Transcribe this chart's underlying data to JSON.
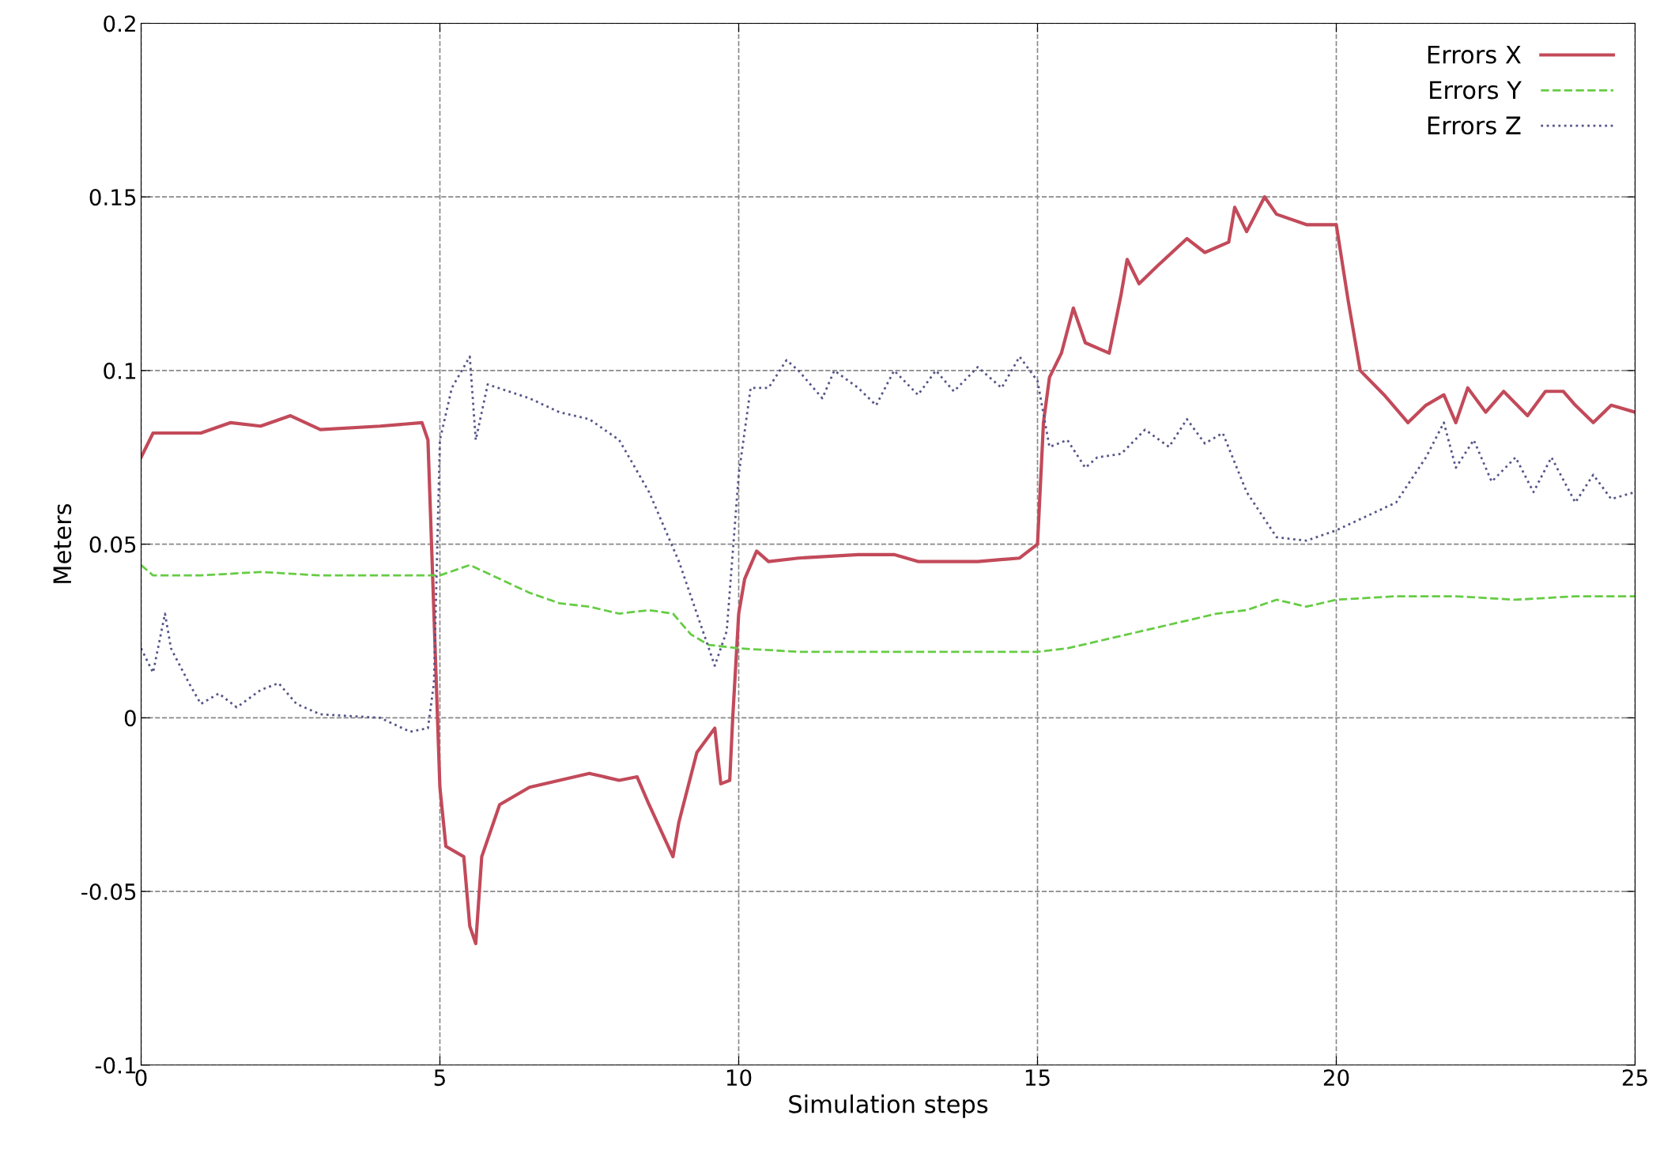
{
  "chart_data": {
    "type": "line",
    "xlabel": "Simulation steps",
    "ylabel": "Meters",
    "xlim": [
      0,
      25
    ],
    "xticks": [
      0,
      5,
      10,
      15,
      20,
      25
    ],
    "ylim": [
      -0.1,
      0.2
    ],
    "yticks": [
      -0.1,
      -0.05,
      0,
      0.05,
      0.1,
      0.15,
      0.2
    ],
    "grid": true,
    "legend": "top right",
    "series": [
      {
        "name": "Errors X",
        "color": "#c24a5a",
        "line_style": "solid",
        "x": [
          0,
          0.2,
          1,
          1.5,
          2,
          2.5,
          3,
          4,
          4.7,
          4.8,
          5.0,
          5.1,
          5.4,
          5.5,
          5.6,
          5.7,
          6.0,
          6.5,
          7,
          7.5,
          8,
          8.3,
          8.5,
          8.9,
          9.0,
          9.3,
          9.6,
          9.7,
          9.85,
          9.9,
          10.0,
          10.1,
          10.3,
          10.5,
          11,
          12,
          12.6,
          13,
          14,
          14.7,
          15,
          15.1,
          15.2,
          15.4,
          15.6,
          15.8,
          16.2,
          16.4,
          16.5,
          16.7,
          17,
          17.5,
          17.8,
          18.2,
          18.3,
          18.5,
          18.8,
          19,
          19.5,
          20,
          20.2,
          20.4,
          20.8,
          21.2,
          21.5,
          21.8,
          22,
          22.2,
          22.5,
          22.8,
          23.2,
          23.5,
          23.8,
          24,
          24.3,
          24.6,
          25
        ],
        "values": [
          0.075,
          0.082,
          0.082,
          0.085,
          0.084,
          0.087,
          0.083,
          0.084,
          0.085,
          0.08,
          -0.02,
          -0.037,
          -0.04,
          -0.06,
          -0.065,
          -0.04,
          -0.025,
          -0.02,
          -0.018,
          -0.016,
          -0.018,
          -0.017,
          -0.025,
          -0.04,
          -0.03,
          -0.01,
          -0.003,
          -0.019,
          -0.018,
          0.0,
          0.03,
          0.04,
          0.048,
          0.045,
          0.046,
          0.047,
          0.047,
          0.045,
          0.045,
          0.046,
          0.05,
          0.085,
          0.098,
          0.105,
          0.118,
          0.108,
          0.105,
          0.122,
          0.132,
          0.125,
          0.13,
          0.138,
          0.134,
          0.137,
          0.147,
          0.14,
          0.15,
          0.145,
          0.142,
          0.142,
          0.12,
          0.1,
          0.093,
          0.085,
          0.09,
          0.093,
          0.085,
          0.095,
          0.088,
          0.094,
          0.087,
          0.094,
          0.094,
          0.09,
          0.085,
          0.09,
          0.088
        ]
      },
      {
        "name": "Errors Y",
        "color": "#66cc44",
        "line_style": "dashed",
        "x": [
          0,
          0.2,
          1,
          2,
          3,
          4,
          5,
          5.5,
          6,
          6.5,
          7,
          7.5,
          8,
          8.5,
          8.9,
          9.2,
          9.5,
          10,
          11,
          12,
          13,
          14,
          15,
          15.5,
          16,
          16.5,
          17,
          17.5,
          18,
          18.5,
          19,
          19.5,
          20,
          21,
          22,
          23,
          24,
          25
        ],
        "values": [
          0.044,
          0.041,
          0.041,
          0.042,
          0.041,
          0.041,
          0.041,
          0.044,
          0.04,
          0.036,
          0.033,
          0.032,
          0.03,
          0.031,
          0.03,
          0.024,
          0.021,
          0.02,
          0.019,
          0.019,
          0.019,
          0.019,
          0.019,
          0.02,
          0.022,
          0.024,
          0.026,
          0.028,
          0.03,
          0.031,
          0.034,
          0.032,
          0.034,
          0.035,
          0.035,
          0.034,
          0.035,
          0.035
        ]
      },
      {
        "name": "Errors Z",
        "color": "#555588",
        "line_style": "dotted",
        "x": [
          0,
          0.2,
          0.4,
          0.5,
          0.8,
          1,
          1.3,
          1.6,
          2,
          2.3,
          2.6,
          3,
          4,
          4.5,
          4.8,
          4.9,
          5.0,
          5.2,
          5.5,
          5.6,
          5.8,
          6.5,
          7,
          7.5,
          8,
          8.5,
          9,
          9.2,
          9.6,
          9.8,
          10.0,
          10.2,
          10.5,
          10.8,
          11,
          11.4,
          11.6,
          12,
          12.3,
          12.6,
          13,
          13.3,
          13.6,
          14,
          14.4,
          14.7,
          15,
          15.2,
          15.5,
          15.8,
          16,
          16.4,
          16.8,
          17.2,
          17.5,
          17.8,
          18.1,
          18.5,
          19,
          19.5,
          20,
          20.5,
          21,
          21.5,
          21.8,
          22,
          22.3,
          22.6,
          23,
          23.3,
          23.6,
          24,
          24.3,
          24.6,
          25
        ],
        "values": [
          0.02,
          0.013,
          0.03,
          0.02,
          0.01,
          0.004,
          0.007,
          0.003,
          0.008,
          0.01,
          0.004,
          0.001,
          0.0,
          -0.004,
          -0.003,
          0.01,
          0.08,
          0.095,
          0.104,
          0.08,
          0.096,
          0.092,
          0.088,
          0.086,
          0.08,
          0.065,
          0.045,
          0.035,
          0.015,
          0.025,
          0.07,
          0.095,
          0.095,
          0.103,
          0.1,
          0.092,
          0.1,
          0.095,
          0.09,
          0.1,
          0.093,
          0.1,
          0.094,
          0.101,
          0.095,
          0.104,
          0.097,
          0.078,
          0.08,
          0.072,
          0.075,
          0.076,
          0.083,
          0.078,
          0.086,
          0.079,
          0.082,
          0.065,
          0.052,
          0.051,
          0.054,
          0.058,
          0.062,
          0.075,
          0.085,
          0.072,
          0.08,
          0.068,
          0.075,
          0.065,
          0.075,
          0.062,
          0.07,
          0.063,
          0.065
        ]
      }
    ]
  }
}
